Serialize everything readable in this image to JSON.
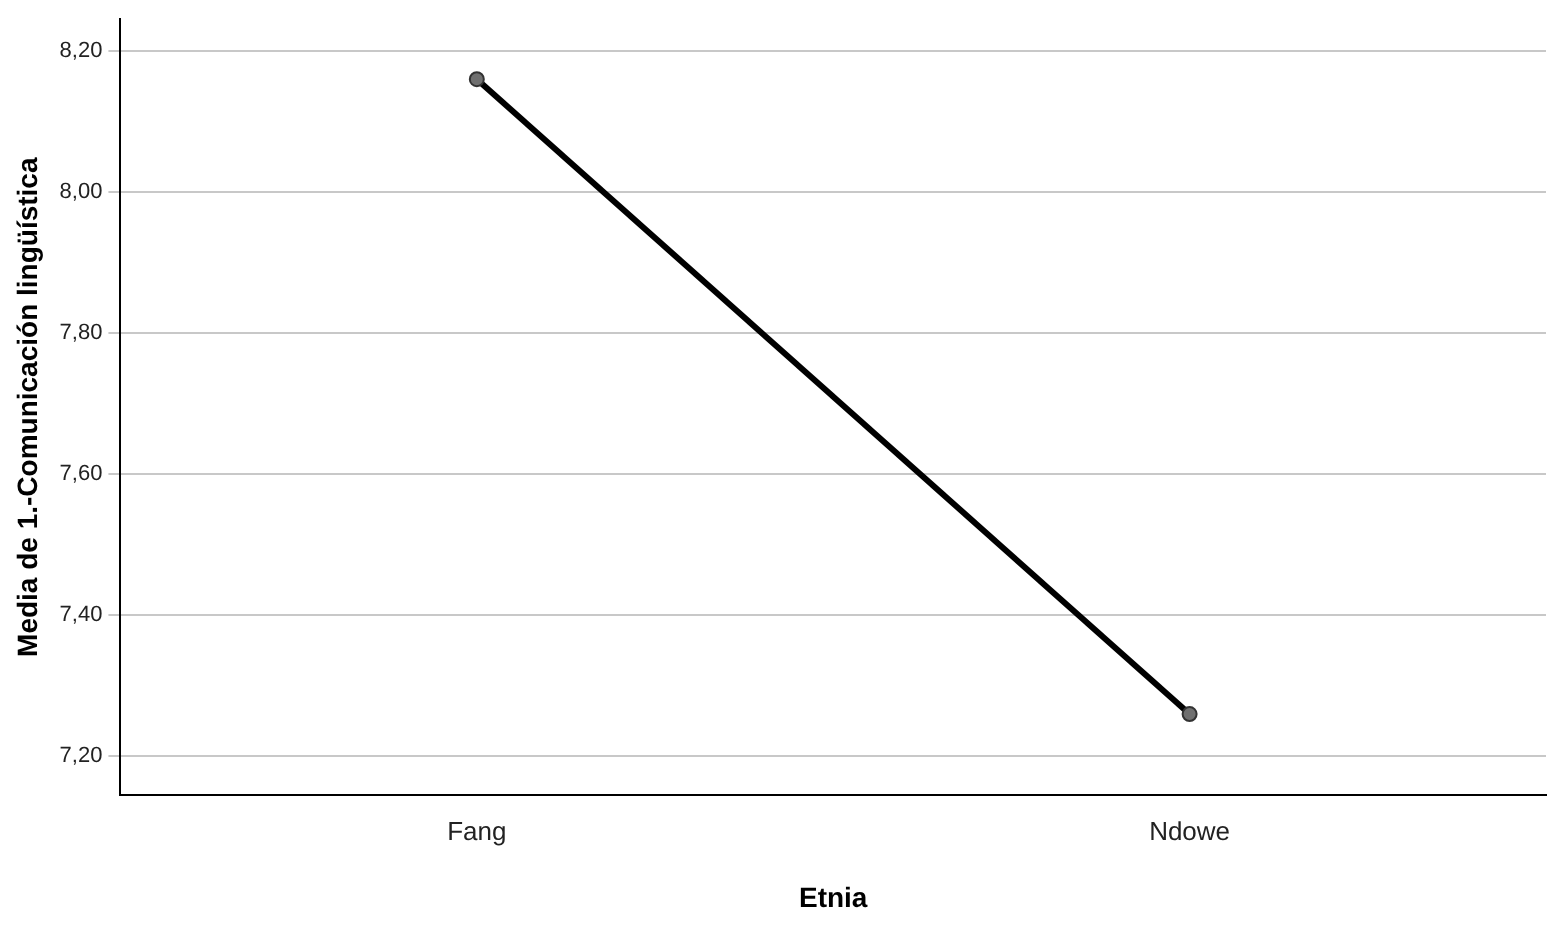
{
  "chart_data": {
    "type": "line",
    "xlabel": "Etnia",
    "ylabel": "Media de 1.-Comunicación lingüística",
    "categories": [
      "Fang",
      "Ndowe"
    ],
    "series": [
      {
        "color": "#000000",
        "values": [
          8.16,
          7.26
        ]
      }
    ],
    "ylim": [
      7.145,
      8.245
    ],
    "yticks": [
      {
        "value": 7.2,
        "label": "7,20"
      },
      {
        "value": 7.4,
        "label": "7,40"
      },
      {
        "value": 7.6,
        "label": "7,60"
      },
      {
        "value": 7.8,
        "label": "7,80"
      },
      {
        "value": 8.0,
        "label": "8,00"
      },
      {
        "value": 8.2,
        "label": "8,20"
      }
    ],
    "grid": "y",
    "legend": false,
    "marker": "circle",
    "line_style": "solid"
  }
}
